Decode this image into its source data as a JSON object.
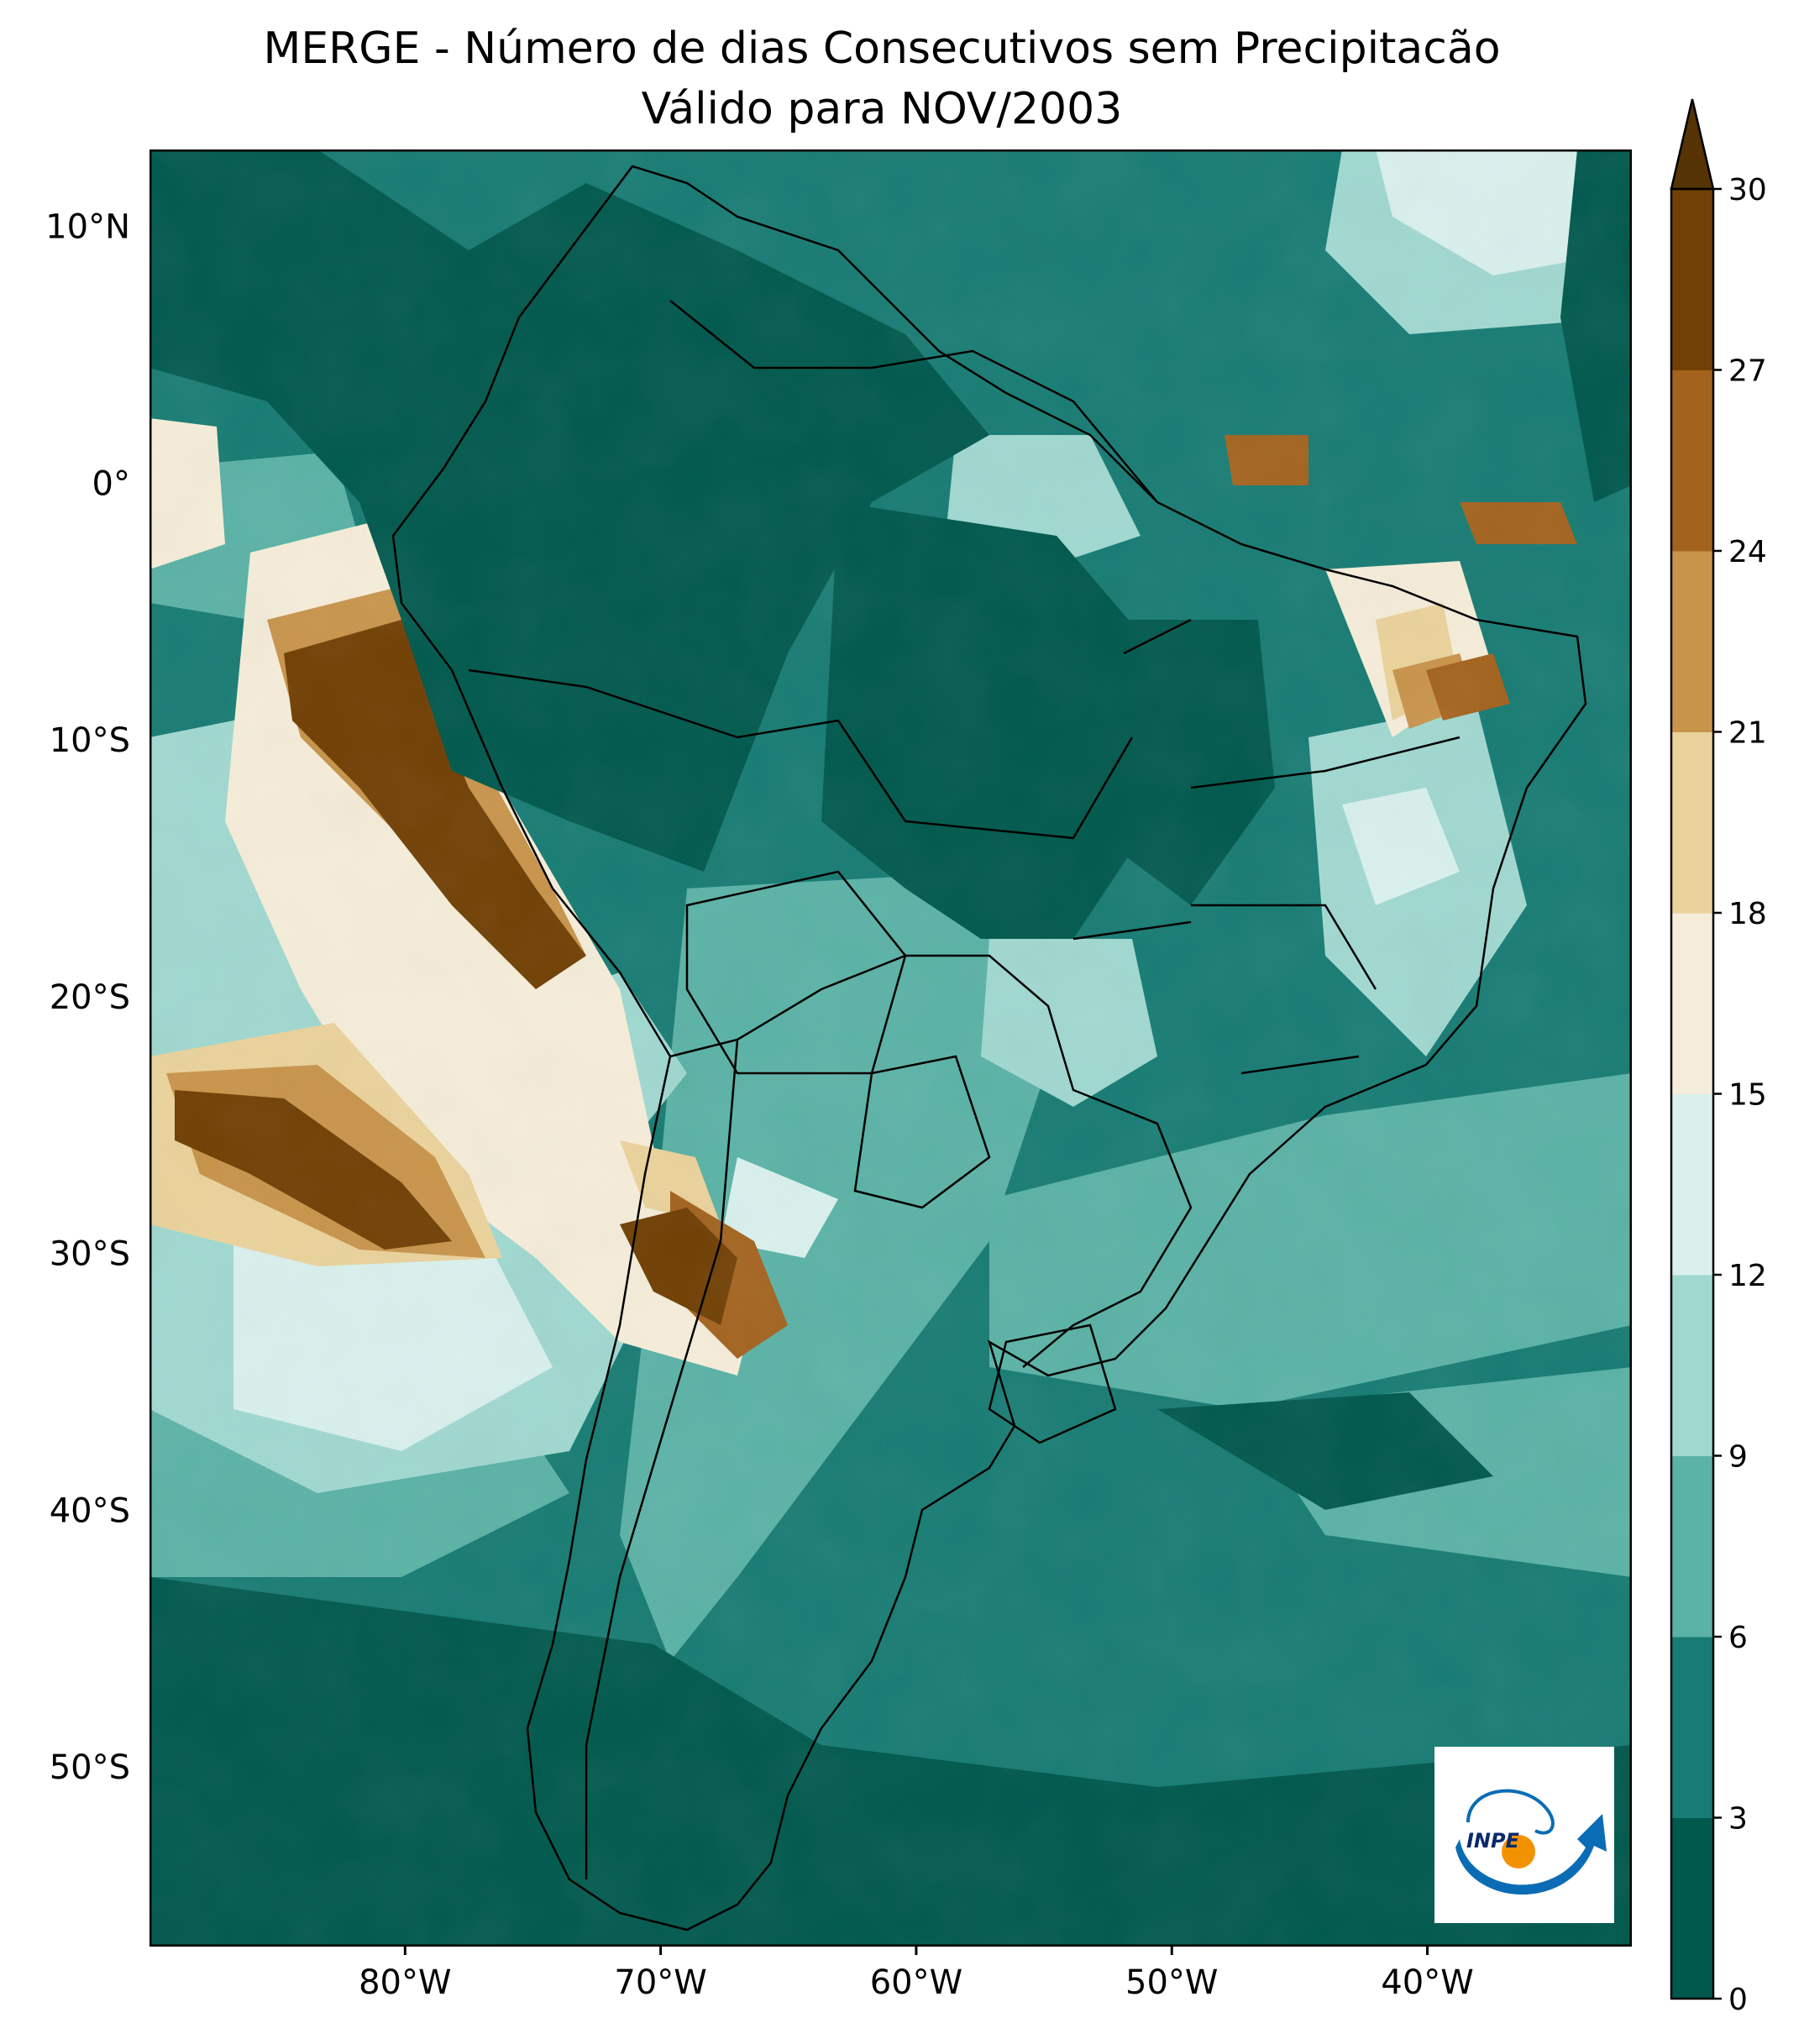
{
  "title": {
    "line1": "MERGE - Número de dias Consecutivos sem Precipitacão",
    "line2": "Válido para NOV/2003"
  },
  "map": {
    "lat_ticks": [
      "10°N",
      "0°",
      "10°S",
      "20°S",
      "30°S",
      "40°S",
      "50°S"
    ],
    "lon_ticks": [
      "80°W",
      "70°W",
      "60°W",
      "50°W",
      "40°W"
    ],
    "extent": {
      "lon_min": -90,
      "lon_max": -32,
      "lat_min": -57,
      "lat_max": 13
    }
  },
  "colorbar": {
    "levels": [
      "0",
      "3",
      "6",
      "9",
      "12",
      "15",
      "18",
      "21",
      "24",
      "27",
      "30"
    ],
    "colors": [
      "#01594e",
      "#187c74",
      "#5bb2a6",
      "#a0d8d0",
      "#d9f0ed",
      "#f5edd9",
      "#ead29b",
      "#c8944b",
      "#a3631e",
      "#714004",
      "#553305"
    ],
    "extend": "max"
  },
  "logo": {
    "text": "INPE"
  }
}
